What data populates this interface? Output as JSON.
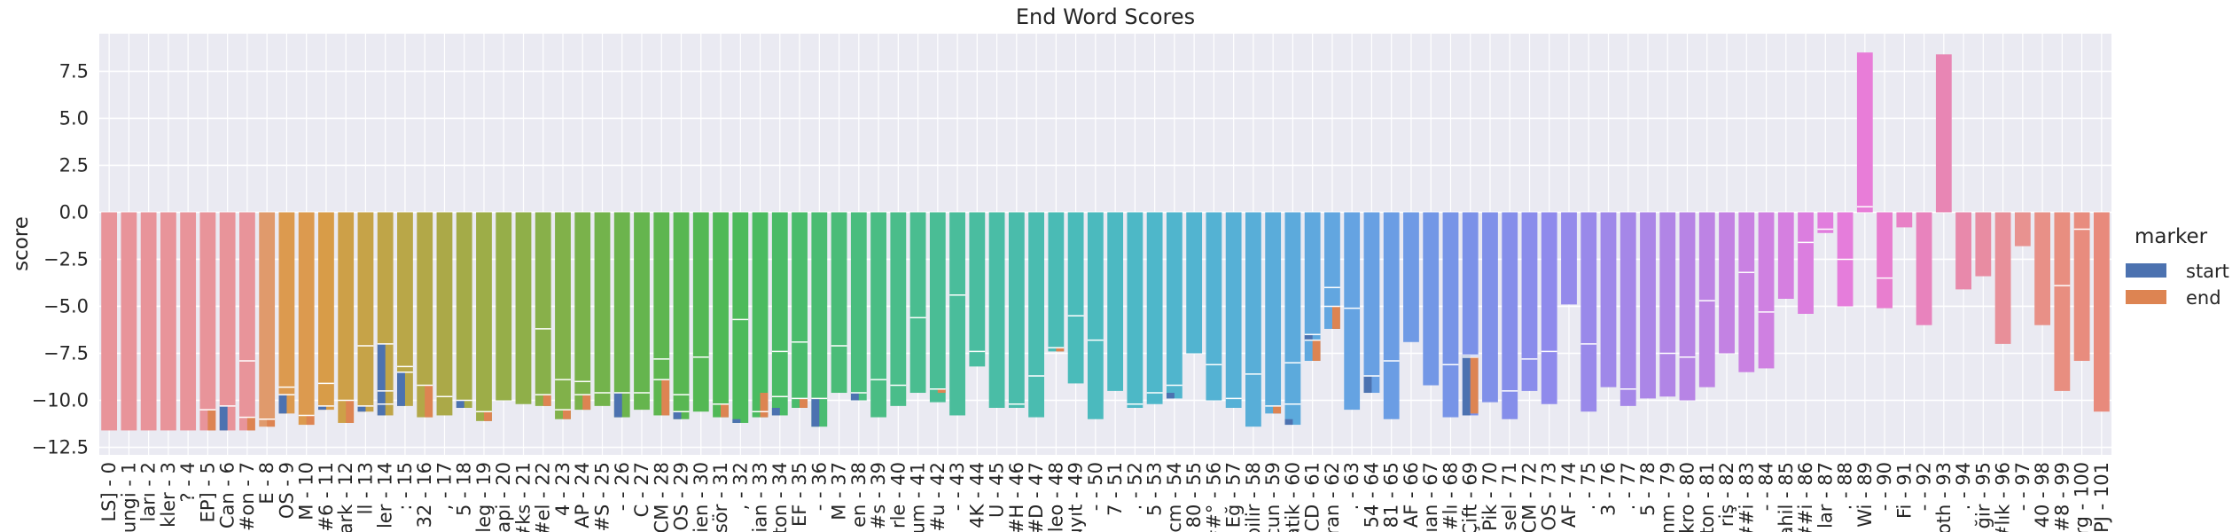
{
  "chart_data": {
    "type": "bar",
    "title": "End Word Scores",
    "xlabel": "",
    "ylabel": "score",
    "ylim": [
      -12.9,
      9.5
    ],
    "yticks": [
      -12.5,
      -10.0,
      -7.5,
      -5.0,
      -2.5,
      0.0,
      2.5,
      5.0,
      7.5
    ],
    "ytick_labels": [
      "−12.5",
      "−10.0",
      "−7.5",
      "−5.0",
      "−2.5",
      "0.0",
      "2.5",
      "5.0",
      "7.5"
    ],
    "grid": true,
    "legend": {
      "title": "marker",
      "placement": "right",
      "entries": [
        {
          "name": "start",
          "color": "#4c72b0"
        },
        {
          "name": "end",
          "color": "#dd8452"
        }
      ]
    },
    "categories": [
      "LS] - 0",
      "ungi - 1",
      "ları - 2",
      "kler - 3",
      "? - 4",
      "EP] - 5",
      "Can - 6",
      "#on - 7",
      "E - 8",
      "OS - 9",
      "M - 10",
      "#6 - 11",
      "ark - 12",
      "ll - 13",
      "ler - 14",
      ": - 15",
      "32 - 16",
      ", - 17",
      "5 - 18",
      "leg - 19",
      "api - 20",
      "#ks - 21",
      "#el - 22",
      "4 - 23",
      "AP - 24",
      "#S - 25",
      "- - 26",
      "C - 27",
      "CM - 28",
      "OS - 29",
      "ien - 30",
      "sör - 31",
      ", - 32",
      "ian - 33",
      "ton - 34",
      "EF - 35",
      "- - 36",
      "M - 37",
      "en - 38",
      "#s - 39",
      "rle - 40",
      "um - 41",
      "#u - 42",
      "- - 43",
      "4K - 44",
      "U - 45",
      "#H - 46",
      "#D - 47",
      "leo - 48",
      "uyıt - 49",
      "- - 50",
      "7 - 51",
      ". - 52",
      "5 - 53",
      "cm - 54",
      "80 - 55",
      "##° - 56",
      "Eğ - 57",
      "bilir - 58",
      "cun - 59",
      "atik - 60",
      "CD - 61",
      "ran - 62",
      ". - 63",
      "54 - 64",
      "81 - 65",
      "AF - 66",
      "ıan - 67",
      "#lı - 68",
      "Çift - 69",
      "Pik - 70",
      "sel - 71",
      "CM - 72",
      "OS - 73",
      "AF - 74",
      ". - 75",
      "3 - 76",
      ". - 77",
      "5 - 78",
      "nm - 79",
      "kro - 80",
      "ton - 81",
      "riş - 82",
      "##i - 83",
      "- - 84",
      "ahil - 85",
      "##i - 86",
      "lar - 87",
      ". - 88",
      "Wi - 89",
      "- - 90",
      "Fi - 91",
      "- - 92",
      "oth - 93",
      ". - 94",
      "ğir - 95",
      "#lık - 96",
      "- - 97",
      "40 - 98",
      "#8 - 99",
      "rg - 100",
      "PJ - 101"
    ],
    "values": [
      -11.6,
      -11.6,
      -11.6,
      -11.6,
      -11.6,
      -11.6,
      -11.6,
      -11.6,
      -11.4,
      -10.7,
      -11.3,
      -10.5,
      -11.2,
      -10.6,
      -10.8,
      -10.3,
      -10.9,
      -10.8,
      -10.4,
      -11.1,
      -10.0,
      -10.2,
      -10.3,
      -11.0,
      -10.5,
      -10.3,
      -10.9,
      -10.5,
      -10.8,
      -11.0,
      -10.6,
      -10.9,
      -11.2,
      -10.9,
      -10.8,
      -10.4,
      -11.4,
      -9.6,
      -10.0,
      -10.9,
      -10.3,
      -9.6,
      -10.1,
      -10.8,
      -8.2,
      -10.4,
      -10.4,
      -10.9,
      -7.4,
      -9.1,
      -11.0,
      -9.5,
      -10.4,
      -10.2,
      -9.9,
      -7.5,
      -10.0,
      -10.4,
      -11.4,
      -10.7,
      -11.3,
      -7.9,
      -6.2,
      -10.5,
      -9.6,
      -11.0,
      -6.9,
      -9.2,
      -10.9,
      -10.8,
      -10.1,
      -11.0,
      -9.5,
      -10.2,
      -4.9,
      -10.6,
      -9.3,
      -10.3,
      -9.9,
      -9.8,
      -10.0,
      -9.3,
      -7.5,
      -8.5,
      -8.3,
      -4.6,
      -5.4,
      -1.1,
      -5.0,
      8.5,
      -5.1,
      -0.8,
      -6.0,
      8.4,
      -4.1,
      -3.4,
      -7.0,
      -1.8,
      -6.0,
      -9.5,
      -7.9,
      -10.6
    ],
    "segments": [
      [],
      [],
      [],
      [],
      [],
      [
        -10.5
      ],
      [
        -10.3
      ],
      [
        -10.9,
        -7.9
      ],
      [
        -11.0
      ],
      [
        -9.3,
        -9.7
      ],
      [
        -10.8
      ],
      [
        -10.3,
        -9.1
      ],
      [
        -10.0
      ],
      [
        -10.3,
        -7.1
      ],
      [
        -7.0,
        -9.5,
        -10.2
      ],
      [
        -8.2,
        -8.5
      ],
      [
        -9.2
      ],
      [
        -9.8
      ],
      [
        -10.0
      ],
      [
        -10.6
      ],
      [],
      [],
      [
        -9.7,
        -6.2
      ],
      [
        -10.5,
        -8.9
      ],
      [
        -9.7,
        -9.0
      ],
      [
        -9.6
      ],
      [
        -9.6
      ],
      [
        -9.6
      ],
      [
        -7.8,
        -8.9
      ],
      [
        -10.6,
        -9.7
      ],
      [
        -7.7
      ],
      [
        -10.2
      ],
      [
        -5.7
      ],
      [
        -10.6
      ],
      [
        -9.8,
        -7.4
      ],
      [
        -9.9,
        -6.9
      ],
      [
        -9.9
      ],
      [
        -7.1
      ],
      [
        -9.6
      ],
      [
        -8.9
      ],
      [
        -9.2
      ],
      [
        -5.6
      ],
      [
        -9.4
      ],
      [
        -4.4
      ],
      [
        -7.4
      ],
      [],
      [
        -10.2
      ],
      [
        -8.7
      ],
      [
        -7.2
      ],
      [
        -5.5
      ],
      [
        -6.8
      ],
      [],
      [
        -10.2
      ],
      [
        -9.6
      ],
      [
        -9.2
      ],
      [],
      [
        -8.1
      ],
      [
        -9.9
      ],
      [
        -8.6
      ],
      [
        -10.3
      ],
      [
        -10.2,
        -8.0
      ],
      [
        -6.5,
        -6.8
      ],
      [
        -4.0,
        -5.0
      ],
      [
        -5.1
      ],
      [
        -8.7
      ],
      [
        -7.9
      ],
      [],
      [],
      [
        -8.1
      ],
      [
        -7.6,
        -7.7
      ],
      [],
      [
        -9.5
      ],
      [
        -7.8
      ],
      [
        -7.4
      ],
      [],
      [
        -7.0
      ],
      [],
      [
        -9.4
      ],
      [],
      [
        -7.5
      ],
      [
        -7.7
      ],
      [
        -4.7
      ],
      [],
      [
        -3.2
      ],
      [
        -5.3
      ],
      [],
      [
        -1.6
      ],
      [
        -0.9
      ],
      [
        -2.5
      ],
      [
        0.3
      ],
      [
        -3.5
      ],
      [],
      [],
      [],
      [],
      [],
      [],
      [],
      [],
      [
        -3.9
      ],
      [
        -0.9
      ],
      []
    ],
    "markers": [
      [],
      [],
      [],
      [],
      [],
      [
        {
          "from": -11.6,
          "to": -10.5,
          "type": "end"
        }
      ],
      [
        {
          "from": -10.3,
          "to": -11.6,
          "type": "start"
        }
      ],
      [
        {
          "from": -10.9,
          "to": -11.6,
          "type": "end"
        }
      ],
      [
        {
          "from": -11.0,
          "to": -11.4,
          "type": "end"
        }
      ],
      [
        {
          "from": -9.7,
          "to": -10.7,
          "type": "start"
        }
      ],
      [
        {
          "from": -10.8,
          "to": -11.3,
          "type": "end"
        }
      ],
      [
        {
          "from": -10.3,
          "to": -10.5,
          "type": "start"
        }
      ],
      [
        {
          "from": -10.0,
          "to": -11.2,
          "type": "end"
        }
      ],
      [
        {
          "from": -10.3,
          "to": -10.6,
          "type": "start"
        }
      ],
      [
        {
          "from": -7.0,
          "to": -10.8,
          "type": "start"
        }
      ],
      [
        {
          "from": -8.5,
          "to": -10.3,
          "type": "start"
        }
      ],
      [
        {
          "from": -9.2,
          "to": -10.9,
          "type": "end"
        }
      ],
      [],
      [
        {
          "from": -10.0,
          "to": -10.4,
          "type": "start"
        }
      ],
      [
        {
          "from": -10.6,
          "to": -11.1,
          "type": "end"
        }
      ],
      [],
      [],
      [
        {
          "from": -9.7,
          "to": -10.3,
          "type": "end"
        }
      ],
      [
        {
          "from": -10.5,
          "to": -11.0,
          "type": "end"
        }
      ],
      [
        {
          "from": -9.7,
          "to": -10.5,
          "type": "end"
        }
      ],
      [],
      [
        {
          "from": -9.6,
          "to": -10.9,
          "type": "start"
        }
      ],
      [],
      [
        {
          "from": -8.9,
          "to": -10.8,
          "type": "end"
        }
      ],
      [
        {
          "from": -10.6,
          "to": -11.0,
          "type": "start"
        }
      ],
      [],
      [
        {
          "from": -10.2,
          "to": -10.9,
          "type": "end"
        }
      ],
      [
        {
          "from": -11.0,
          "to": -11.2,
          "type": "start"
        }
      ],
      [
        {
          "from": -9.6,
          "to": -10.9,
          "type": "end"
        }
      ],
      [
        {
          "from": -10.4,
          "to": -10.8,
          "type": "start"
        }
      ],
      [
        {
          "from": -9.9,
          "to": -10.4,
          "type": "end"
        }
      ],
      [
        {
          "from": -9.9,
          "to": -11.4,
          "type": "start"
        }
      ],
      [],
      [
        {
          "from": -9.6,
          "to": -10.0,
          "type": "start"
        }
      ],
      [],
      [],
      [],
      [
        {
          "from": -9.4,
          "to": -9.6,
          "type": "end"
        }
      ],
      [],
      [],
      [],
      [],
      [],
      [
        {
          "from": -7.2,
          "to": -7.4,
          "type": "end"
        }
      ],
      [],
      [],
      [],
      [],
      [],
      [
        {
          "from": -9.6,
          "to": -9.9,
          "type": "start"
        }
      ],
      [],
      [],
      [],
      [],
      [
        {
          "from": -10.3,
          "to": -10.7,
          "type": "end"
        }
      ],
      [
        {
          "from": -11.0,
          "to": -11.3,
          "type": "start"
        }
      ],
      [
        {
          "from": -6.5,
          "to": -6.8,
          "type": "start"
        },
        {
          "from": -6.8,
          "to": -7.9,
          "type": "end"
        }
      ],
      [
        {
          "from": -5.0,
          "to": -6.2,
          "type": "end"
        }
      ],
      [],
      [
        {
          "from": -8.7,
          "to": -9.6,
          "type": "start"
        }
      ],
      [],
      [],
      [],
      [],
      [
        {
          "from": -7.6,
          "to": -10.8,
          "type": "start"
        },
        {
          "from": -7.7,
          "to": -10.7,
          "type": "end"
        }
      ],
      [],
      [],
      [],
      [],
      [],
      [],
      [],
      [],
      [],
      [],
      [],
      [],
      [],
      [],
      [],
      [],
      [],
      [],
      [],
      [],
      [],
      [],
      [],
      [],
      [],
      [],
      [],
      [],
      [],
      [],
      [],
      []
    ],
    "bar_colors": [
      "#e8949a",
      "#e8949a",
      "#e8949a",
      "#e8949a",
      "#e8949a",
      "#e0957f",
      "#e0957f",
      "#e0957f",
      "#e09a6c",
      "#e09a5e",
      "#dc9a4f",
      "#d99c48",
      "#d19f48",
      "#c9a248",
      "#c2a448",
      "#bca648",
      "#b5a848",
      "#aea948",
      "#a6ab48",
      "#9fad48",
      "#98ae49",
      "#91af49",
      "#8ab04a",
      "#84b14a",
      "#7db24b",
      "#76b34c",
      "#6fb44d",
      "#68b54e",
      "#61b650",
      "#5ab752",
      "#55b854",
      "#51b957",
      "#4eba5b",
      "#4cbb60",
      "#4bbb66",
      "#4abc6c",
      "#4abc72",
      "#4abc78",
      "#4abd7e",
      "#4abd84",
      "#4abd8a",
      "#4abd90",
      "#4abd95",
      "#4abd9b",
      "#4abda0",
      "#4abda6",
      "#4abcab",
      "#4abcb0",
      "#4abbb5",
      "#4abbba",
      "#4bbabe",
      "#4cb9c2",
      "#4db8c6",
      "#4eb7ca",
      "#50b5cd",
      "#52b4d0",
      "#54b2d3",
      "#56b0d6",
      "#58aed8",
      "#5aacda",
      "#5caadc",
      "#5fa8de",
      "#62a6e0",
      "#65a3e2",
      "#68a0e3",
      "#6b9de4",
      "#6f9ae5",
      "#7397e6",
      "#7794e7",
      "#7b91e8",
      "#8090e9",
      "#858eea",
      "#8a8ceb",
      "#8f8aec",
      "#948aeb",
      "#9989ea",
      "#9f88e9",
      "#a587e8",
      "#ab86e7",
      "#b185e6",
      "#b784e5",
      "#bd83e4",
      "#c382e3",
      "#c981e2",
      "#cf80e1",
      "#d57fe0",
      "#db7edf",
      "#e17ddd",
      "#e57ddb",
      "#e87dd8",
      "#e87ecf",
      "#e880c6",
      "#e883bd",
      "#e886b4",
      "#e889ab",
      "#e88ca2",
      "#e88f99",
      "#e89290",
      "#e89087",
      "#e88e80",
      "#e88c7e",
      "#e88a7c"
    ],
    "bar_colors_plain": [
      "#e8949a",
      "#e8949a",
      "#e8949a",
      "#e8949a",
      "#e8949a",
      "#e8949a",
      "#e8949a",
      "#e8949a",
      "#e09a6c",
      "#dc9a4f",
      "#dc9a4f",
      "#d89c48",
      "#cda048",
      "#c6a348",
      "#bfa548",
      "#b9a748",
      "#b2a848",
      "#aba948",
      "#a4ab48",
      "#9dad48",
      "#96ae49",
      "#8faf49",
      "#88b04a",
      "#81b14a",
      "#7ab24b",
      "#73b34c",
      "#6cb44d",
      "#65b54e",
      "#5eb650",
      "#58b752",
      "#54b854",
      "#50b957",
      "#4dba5b",
      "#4bbb60",
      "#4abb66",
      "#4abc6c",
      "#4abc72",
      "#4abc78",
      "#4abd7e",
      "#4abd84",
      "#4abd8a",
      "#4abd90",
      "#4abd95",
      "#4abd9b",
      "#4abda0",
      "#4abda6",
      "#4abcab",
      "#4abcb0",
      "#4abbb5",
      "#4abbba",
      "#4bbabe",
      "#4cb9c2",
      "#4db8c6",
      "#4eb7ca",
      "#50b5cd",
      "#52b4d0",
      "#54b2d3",
      "#56b0d6",
      "#58aed8",
      "#5aacda",
      "#5caadc",
      "#5fa8de",
      "#62a6e0",
      "#65a3e2",
      "#68a0e3",
      "#6b9de4",
      "#6f9ae5",
      "#7397e6",
      "#7794e7",
      "#7b91e8",
      "#8090e9",
      "#858eea",
      "#8a8ceb",
      "#8f8aec",
      "#948aeb",
      "#9989ea",
      "#9f88e9",
      "#a587e8",
      "#ab86e7",
      "#b185e6",
      "#b784e5",
      "#bd83e4",
      "#c382e3",
      "#c981e2",
      "#cf80e1",
      "#d57fe0",
      "#db7edf",
      "#e17ddd",
      "#e57ddb",
      "#e87dd8",
      "#e87ecf",
      "#e880c6",
      "#e883bd",
      "#e886b4",
      "#e889ab",
      "#e88ca2",
      "#e88f99",
      "#e89290",
      "#e89087",
      "#e88e80",
      "#e88c7e",
      "#e88a7c"
    ],
    "colors": {
      "plot_background": "#eaeaf2",
      "grid": "#ffffff",
      "start": "#4c72b0",
      "end": "#dd8452",
      "text": "#262626"
    }
  }
}
